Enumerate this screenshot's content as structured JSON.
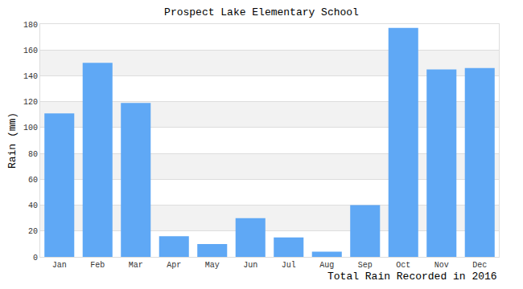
{
  "chart_data": {
    "type": "bar",
    "title": "Prospect Lake Elementary School",
    "ylabel": "Rain (mm)",
    "xlabel": "Total Rain Recorded in 2016",
    "categories": [
      "Jan",
      "Feb",
      "Mar",
      "Apr",
      "May",
      "Jun",
      "Jul",
      "Aug",
      "Sep",
      "Oct",
      "Nov",
      "Dec"
    ],
    "values": [
      111,
      150,
      119,
      16,
      10,
      30,
      15,
      4,
      40,
      177,
      145,
      146
    ],
    "color": "#5fa8f5",
    "ylim": [
      0,
      180
    ],
    "yticks": [
      0,
      20,
      40,
      60,
      80,
      100,
      120,
      140,
      160,
      180
    ],
    "grid": true
  }
}
